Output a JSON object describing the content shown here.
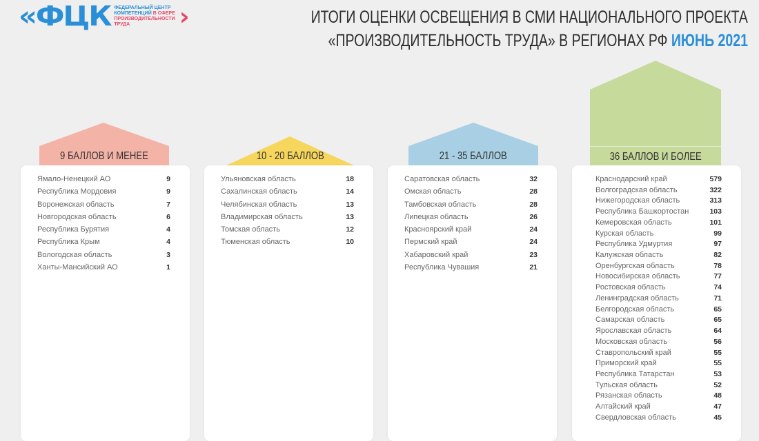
{
  "logo": {
    "mark": "«ФЦК",
    "line1": "ФЕДЕРАЛЬНЫЙ ЦЕНТР",
    "line2a": "КОМПЕТЕНЦИЙ",
    "line2b": "В СФЕРЕ",
    "line3": "ПРОИЗВОДИТЕЛЬНОСТИ",
    "line4": "ТРУДА",
    "chevron": "›"
  },
  "title": {
    "line1": "ИТОГИ ОЦЕНКИ ОСВЕЩЕНИЯ В СМИ НАЦИОНАЛЬНОГО ПРОЕКТА",
    "line2": "«ПРОИЗВОДИТЕЛЬНОСТЬ ТРУДА» В РЕГИОНАХ РФ",
    "highlight": "ИЮНЬ 2021"
  },
  "colors": {
    "group1": "#f4b3a7",
    "group2": "#f6d65c",
    "group3": "#a8cfe4",
    "group4": "#c6da9c",
    "accent": "#2a8fd6"
  },
  "groups": [
    {
      "label": "9 БАЛЛОВ И МЕНЕЕ",
      "items": [
        [
          "Ямало-Ненецкий АО",
          "9"
        ],
        [
          "Республика Мордовия",
          "9"
        ],
        [
          "Воронежская область",
          "7"
        ],
        [
          "Новгородская область",
          "6"
        ],
        [
          "Республика Бурятия",
          "4"
        ],
        [
          "Республика Крым",
          "4"
        ],
        [
          "Вологодская область",
          "3"
        ],
        [
          "Ханты-Мансийский АО",
          "1"
        ]
      ]
    },
    {
      "label": "10 - 20 БАЛЛОВ",
      "items": [
        [
          "Ульяновская область",
          "18"
        ],
        [
          "Сахалинская область",
          "14"
        ],
        [
          "Челябинская область",
          "13"
        ],
        [
          "Владимирская область",
          "13"
        ],
        [
          "Томская область",
          "12"
        ],
        [
          "Тюменская область",
          "10"
        ]
      ]
    },
    {
      "label": "21 - 35 БАЛЛОВ",
      "items": [
        [
          "Саратовская область",
          "32"
        ],
        [
          "Омская область",
          "28"
        ],
        [
          "Тамбовская область",
          "28"
        ],
        [
          "Липецкая область",
          "26"
        ],
        [
          "Красноярский край",
          "24"
        ],
        [
          "Пермский край",
          "24"
        ],
        [
          "Хабаровский край",
          "23"
        ],
        [
          "Республика Чувашия",
          "21"
        ]
      ]
    },
    {
      "label": "36 БАЛЛОВ И БОЛЕЕ",
      "items": [
        [
          "Краснодарский край",
          "579"
        ],
        [
          "Волгоградская область",
          "322"
        ],
        [
          "Нижегородская область",
          "313"
        ],
        [
          "Республика Башкортостан",
          "103"
        ],
        [
          "Кемеровская область",
          "101"
        ],
        [
          "Курская область",
          "99"
        ],
        [
          "Республика Удмуртия",
          "97"
        ],
        [
          "Калужская область",
          "82"
        ],
        [
          "Оренбургская область",
          "78"
        ],
        [
          "Новосибирская область",
          "77"
        ],
        [
          "Ростовская область",
          "74"
        ],
        [
          "Ленинградская область",
          "71"
        ],
        [
          "Белгородская область",
          "65"
        ],
        [
          "Самарская область",
          "65"
        ],
        [
          "Ярославская область",
          "64"
        ],
        [
          "Московская область",
          "56"
        ],
        [
          "Ставропольский край",
          "55"
        ],
        [
          "Приморский край",
          "55"
        ],
        [
          "Республика Татарстан",
          "53"
        ],
        [
          "Тульская область",
          "52"
        ],
        [
          "Рязанская область",
          "48"
        ],
        [
          "Алтайский край",
          "47"
        ],
        [
          "Свердловская область",
          "45"
        ]
      ]
    }
  ]
}
